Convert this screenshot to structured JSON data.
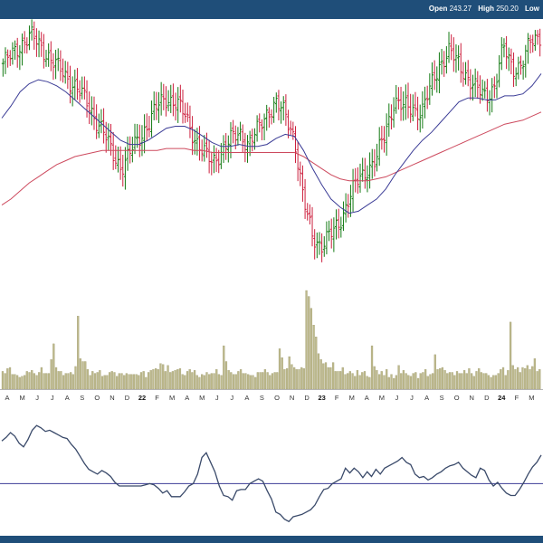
{
  "header": {
    "open_label": "Open",
    "open_value": "243.27",
    "high_label": "High",
    "high_value": "250.20",
    "low_label": "Low"
  },
  "chart_data": {
    "type": "ohlc",
    "title": "",
    "xlabel": "",
    "ylabel": "",
    "grid": false,
    "month_labels": [
      "A",
      "M",
      "J",
      "J",
      "A",
      "S",
      "O",
      "N",
      "D",
      "22",
      "F",
      "M",
      "A",
      "M",
      "J",
      "J",
      "A",
      "S",
      "O",
      "N",
      "D",
      "23",
      "F",
      "M",
      "A",
      "M",
      "J",
      "J",
      "A",
      "S",
      "O",
      "N",
      "D",
      "24",
      "F",
      "M"
    ],
    "year_labels": [
      "22",
      "23",
      "24"
    ],
    "price": {
      "ylim": [
        100,
        270
      ],
      "close": [
        248,
        252,
        258,
        262,
        257,
        252,
        246,
        241,
        237,
        230,
        222,
        215,
        203,
        197,
        204,
        211,
        219,
        227,
        231,
        229,
        222,
        212,
        204,
        199,
        205,
        210,
        214,
        208,
        215,
        224,
        228,
        223,
        212,
        180,
        163,
        158,
        163,
        170,
        181,
        190,
        196,
        200,
        214,
        230,
        226,
        226,
        224,
        236,
        248,
        254,
        248,
        242,
        235,
        232,
        237,
        256,
        246,
        247,
        259,
        262
      ],
      "sma_fast": [
        221,
        227,
        234,
        238,
        240,
        239,
        237,
        234,
        230,
        226,
        222,
        218,
        214,
        210,
        208,
        208,
        210,
        213,
        216,
        217,
        217,
        215,
        212,
        209,
        207,
        207,
        208,
        207,
        207,
        208,
        211,
        213,
        212,
        205,
        196,
        188,
        181,
        177,
        174,
        175,
        178,
        181,
        186,
        193,
        199,
        205,
        210,
        214,
        219,
        224,
        229,
        231,
        231,
        230,
        230,
        232,
        232,
        233,
        237,
        243
      ],
      "sma_slow": [
        178,
        181,
        185,
        189,
        192,
        195,
        198,
        200,
        202,
        203,
        204,
        205,
        205,
        205,
        205,
        205,
        205,
        205,
        206,
        206,
        206,
        205,
        205,
        204,
        204,
        204,
        204,
        204,
        204,
        204,
        204,
        204,
        204,
        202,
        199,
        196,
        193,
        191,
        190,
        190,
        190,
        191,
        192,
        194,
        196,
        198,
        200,
        202,
        204,
        206,
        208,
        210,
        212,
        214,
        216,
        218,
        219,
        220,
        222,
        224
      ]
    },
    "volume": {
      "ylim": [
        0,
        100
      ],
      "values": [
        18,
        16,
        21,
        22,
        15,
        15,
        14,
        12,
        13,
        14,
        18,
        17,
        19,
        16,
        14,
        17,
        22,
        16,
        16,
        16,
        30,
        46,
        22,
        18,
        18,
        14,
        16,
        16,
        17,
        15,
        23,
        74,
        31,
        28,
        28,
        20,
        14,
        18,
        16,
        17,
        19,
        13,
        14,
        14,
        17,
        18,
        17,
        13,
        16,
        16,
        14,
        16,
        15,
        15,
        15,
        15,
        14,
        17,
        18,
        12,
        17,
        19,
        20,
        21,
        20,
        26,
        25,
        18,
        24,
        17,
        18,
        19,
        20,
        21,
        15,
        14,
        18,
        20,
        17,
        19,
        14,
        12,
        15,
        14,
        17,
        15,
        16,
        16,
        20,
        15,
        14,
        44,
        28,
        19,
        17,
        15,
        15,
        18,
        20,
        16,
        16,
        15,
        14,
        14,
        12,
        17,
        17,
        17,
        20,
        17,
        14,
        16,
        17,
        17,
        41,
        32,
        20,
        21,
        33,
        25,
        22,
        20,
        20,
        22,
        21,
        100,
        94,
        82,
        65,
        53,
        36,
        30,
        26,
        27,
        22,
        22,
        27,
        18,
        18,
        18,
        22,
        15,
        16,
        18,
        16,
        13,
        19,
        14,
        17,
        18,
        13,
        12,
        44,
        23,
        19,
        15,
        18,
        14,
        20,
        12,
        15,
        11,
        14,
        24,
        16,
        19,
        16,
        14,
        13,
        16,
        17,
        11,
        16,
        17,
        20,
        13,
        15,
        16,
        35,
        20,
        21,
        22,
        19,
        16,
        17,
        17,
        14,
        18,
        16,
        16,
        19,
        16,
        21,
        16,
        13,
        18,
        21,
        17,
        16,
        16,
        14,
        12,
        14,
        14,
        16,
        20,
        22,
        14,
        19,
        68,
        24,
        20,
        22,
        17,
        22,
        21,
        24,
        20,
        23,
        31,
        18,
        20
      ]
    },
    "oscillator": {
      "ylim": [
        0,
        100
      ],
      "baseline": 44,
      "values": [
        80,
        83,
        87,
        84,
        78,
        75,
        81,
        89,
        93,
        91,
        88,
        89,
        87,
        85,
        83,
        82,
        77,
        73,
        67,
        61,
        56,
        54,
        52,
        55,
        53,
        50,
        45,
        42,
        42,
        42,
        42,
        42,
        42,
        43,
        44,
        43,
        40,
        36,
        38,
        33,
        33,
        33,
        37,
        42,
        44,
        52,
        66,
        70,
        62,
        54,
        42,
        34,
        33,
        30,
        38,
        39,
        39,
        44,
        46,
        48,
        46,
        38,
        31,
        20,
        18,
        14,
        12,
        16,
        17,
        18,
        20,
        22,
        26,
        33,
        39,
        40,
        44,
        46,
        48,
        57,
        53,
        57,
        54,
        49,
        54,
        50,
        56,
        52,
        57,
        59,
        61,
        63,
        66,
        62,
        60,
        52,
        49,
        50,
        47,
        49,
        52,
        54,
        57,
        59,
        60,
        62,
        57,
        54,
        51,
        49,
        57,
        55,
        47,
        42,
        45,
        40,
        36,
        34,
        34,
        39,
        45,
        52,
        58,
        62,
        68
      ]
    }
  }
}
